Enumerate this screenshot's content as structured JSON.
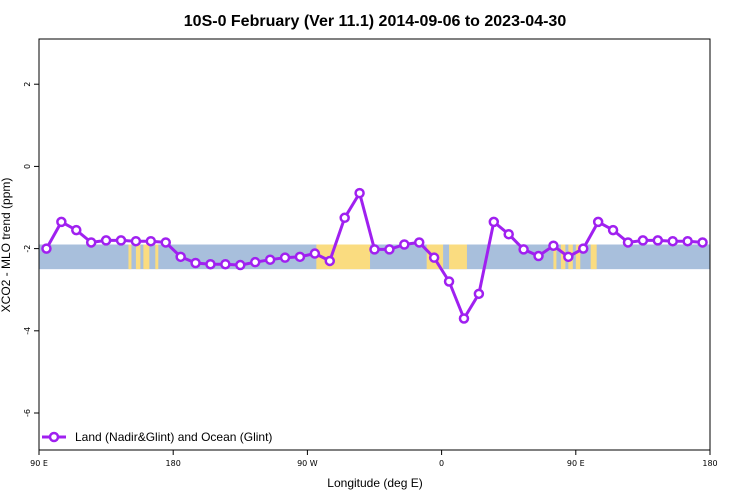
{
  "chart_data": {
    "type": "line",
    "title": "10S-0 February (Ver 11.1)   2014-09-06 to 2023-04-30",
    "xlabel": "Longitude (deg E)",
    "ylabel": "XCO2 - MLO trend (ppm)",
    "xlim": [
      90,
      540
    ],
    "ylim": [
      -6.9,
      3.1
    ],
    "x_ticks": [
      {
        "value": 90,
        "label": "90 E"
      },
      {
        "value": 180,
        "label": "180"
      },
      {
        "value": 270,
        "label": "90 W"
      },
      {
        "value": 360,
        "label": "0"
      },
      {
        "value": 450,
        "label": "90 E"
      },
      {
        "value": 540,
        "label": "180"
      }
    ],
    "y_ticks": [
      {
        "value": 2,
        "label": "2"
      },
      {
        "value": 0,
        "label": "0"
      },
      {
        "value": -2,
        "label": "-2"
      },
      {
        "value": -4,
        "label": "-4"
      },
      {
        "value": -6,
        "label": "-6"
      }
    ],
    "grid": false,
    "legend_position": "bottom-left",
    "colors": {
      "series": "#a020f0",
      "ocean_band": "#a8bfdc",
      "land_band": "#fadc80"
    },
    "map_band": {
      "y_range": [
        -2.5,
        -1.9
      ],
      "land_spans": [
        [
          150,
          152
        ],
        [
          155,
          158
        ],
        [
          160,
          164
        ],
        [
          168,
          170
        ],
        [
          276,
          312
        ],
        [
          350,
          361
        ],
        [
          365,
          377
        ],
        [
          435,
          437
        ],
        [
          440,
          443
        ],
        [
          445,
          448
        ],
        [
          450,
          453
        ],
        [
          460,
          464
        ]
      ]
    },
    "series": [
      {
        "name": "Land (Nadir&Glint) and Ocean (Glint)",
        "x": [
          95,
          105,
          115,
          125,
          135,
          145,
          155,
          165,
          175,
          185,
          195,
          205,
          215,
          225,
          235,
          245,
          255,
          265,
          275,
          285,
          295,
          305,
          315,
          325,
          335,
          345,
          355,
          365,
          375,
          385,
          395,
          405,
          415,
          425,
          435,
          445,
          455,
          465,
          475,
          485,
          495,
          505,
          515,
          525,
          535
        ],
        "y": [
          -2.0,
          -1.35,
          -1.55,
          -1.85,
          -1.8,
          -1.8,
          -1.82,
          -1.82,
          -1.85,
          -2.2,
          -2.35,
          -2.38,
          -2.38,
          -2.4,
          -2.33,
          -2.27,
          -2.22,
          -2.2,
          -2.12,
          -2.3,
          -1.25,
          -0.65,
          -2.02,
          -2.02,
          -1.9,
          -1.85,
          -2.22,
          -2.8,
          -3.7,
          -3.1,
          -1.35,
          -1.65,
          -2.02,
          -2.18,
          -1.93,
          -2.2,
          -2.0,
          -1.35,
          -1.55,
          -1.85,
          -1.8,
          -1.8,
          -1.82,
          -1.82,
          -1.85
        ]
      }
    ]
  }
}
